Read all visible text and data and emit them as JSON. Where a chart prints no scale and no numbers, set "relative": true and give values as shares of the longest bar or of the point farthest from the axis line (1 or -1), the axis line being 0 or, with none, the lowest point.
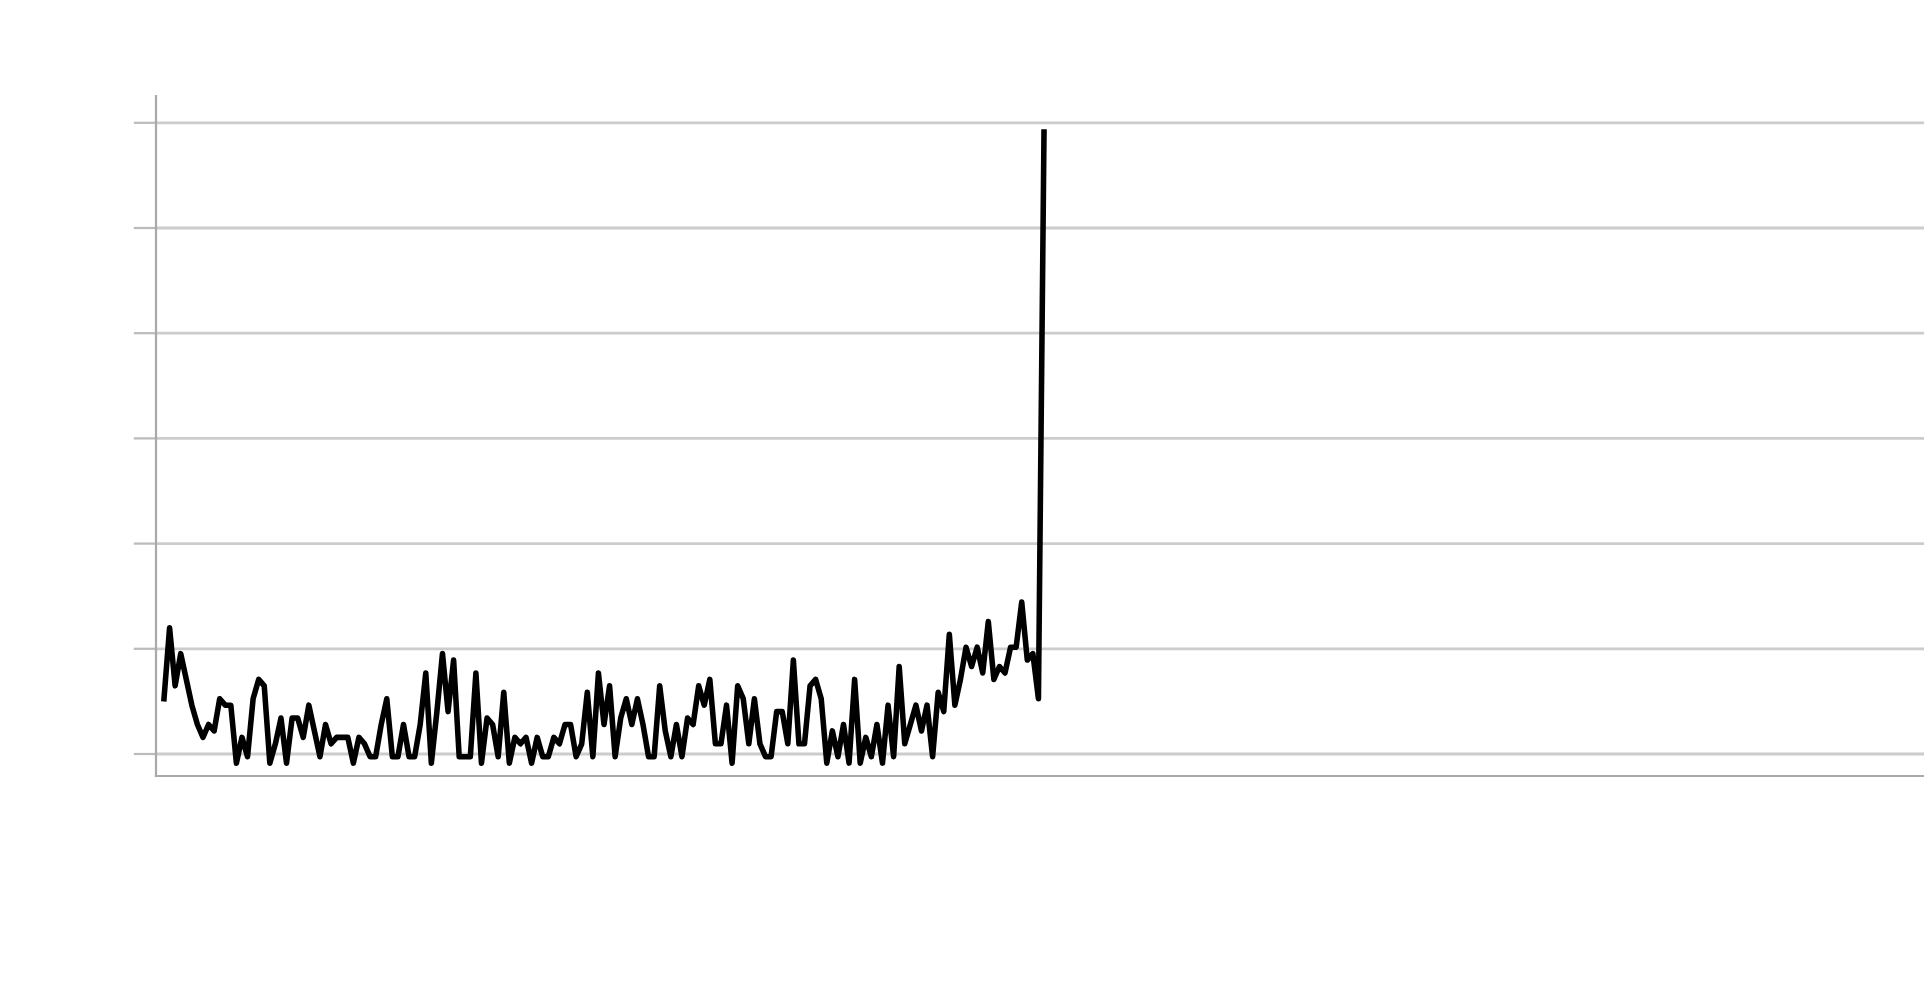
{
  "chart_data": {
    "type": "line",
    "relative": true,
    "grid": "y",
    "tick_labels": false,
    "marker": "none",
    "line_style": "solid",
    "categories": [
      null,
      null,
      null,
      null,
      null,
      null,
      null,
      null,
      null,
      null,
      null,
      null,
      null,
      null,
      null,
      null,
      null,
      null,
      null,
      null,
      null,
      null,
      null,
      null,
      null,
      null,
      null,
      null,
      null,
      null,
      null,
      null,
      null,
      null,
      null,
      null,
      null,
      null,
      null,
      null,
      null,
      null,
      null,
      null,
      null,
      null,
      null,
      null,
      null,
      null,
      null,
      null,
      null,
      null,
      null,
      null,
      null,
      null,
      null,
      null,
      null,
      null,
      null,
      null,
      null,
      null,
      null,
      null,
      null,
      null,
      null,
      null,
      null,
      null,
      null,
      null,
      null,
      null,
      null,
      null,
      null,
      null,
      null,
      null,
      null,
      null,
      null,
      null,
      null,
      null,
      null,
      null,
      null,
      null,
      null,
      null,
      null,
      null,
      null,
      null,
      null,
      null,
      null,
      null,
      null,
      null,
      null,
      null,
      null,
      null,
      null,
      null,
      null,
      null,
      null,
      null,
      null,
      null,
      null,
      null,
      null,
      null,
      null,
      null,
      null,
      null,
      null,
      null,
      null,
      null,
      null,
      null,
      null,
      null,
      null,
      null,
      null,
      null,
      null,
      null,
      null,
      null,
      null,
      null,
      null,
      null,
      null,
      null,
      null,
      null,
      null,
      null,
      null,
      null,
      null,
      null,
      null,
      null,
      null
    ],
    "series": [
      {
        "color": "#000000",
        "values": [
          0.12,
          0.23,
          0.14,
          0.19,
          0.15,
          0.11,
          0.08,
          0.06,
          0.08,
          0.07,
          0.12,
          0.11,
          0.11,
          0.02,
          0.06,
          0.03,
          0.12,
          0.15,
          0.14,
          0.02,
          0.05,
          0.09,
          0.02,
          0.09,
          0.09,
          0.06,
          0.11,
          0.07,
          0.03,
          0.08,
          0.05,
          0.06,
          0.06,
          0.06,
          0.02,
          0.06,
          0.05,
          0.03,
          0.03,
          0.08,
          0.12,
          0.03,
          0.03,
          0.08,
          0.03,
          0.03,
          0.08,
          0.16,
          0.02,
          0.1,
          0.19,
          0.1,
          0.18,
          0.03,
          0.03,
          0.03,
          0.16,
          0.02,
          0.09,
          0.08,
          0.03,
          0.13,
          0.02,
          0.06,
          0.05,
          0.06,
          0.02,
          0.06,
          0.03,
          0.03,
          0.06,
          0.05,
          0.08,
          0.08,
          0.03,
          0.05,
          0.13,
          0.03,
          0.16,
          0.08,
          0.14,
          0.03,
          0.09,
          0.12,
          0.08,
          0.12,
          0.08,
          0.03,
          0.03,
          0.14,
          0.07,
          0.03,
          0.08,
          0.03,
          0.09,
          0.08,
          0.14,
          0.11,
          0.15,
          0.05,
          0.05,
          0.11,
          0.02,
          0.14,
          0.12,
          0.05,
          0.12,
          0.05,
          0.03,
          0.03,
          0.1,
          0.1,
          0.05,
          0.18,
          0.05,
          0.05,
          0.14,
          0.15,
          0.12,
          0.02,
          0.07,
          0.03,
          0.08,
          0.02,
          0.15,
          0.02,
          0.06,
          0.03,
          0.08,
          0.02,
          0.11,
          0.03,
          0.17,
          0.05,
          0.08,
          0.11,
          0.07,
          0.11,
          0.03,
          0.13,
          0.1,
          0.22,
          0.11,
          0.15,
          0.2,
          0.17,
          0.2,
          0.16,
          0.24,
          0.15,
          0.17,
          0.16,
          0.2,
          0.2,
          0.27,
          0.18,
          0.19,
          0.12,
          1
        ]
      }
    ]
  }
}
